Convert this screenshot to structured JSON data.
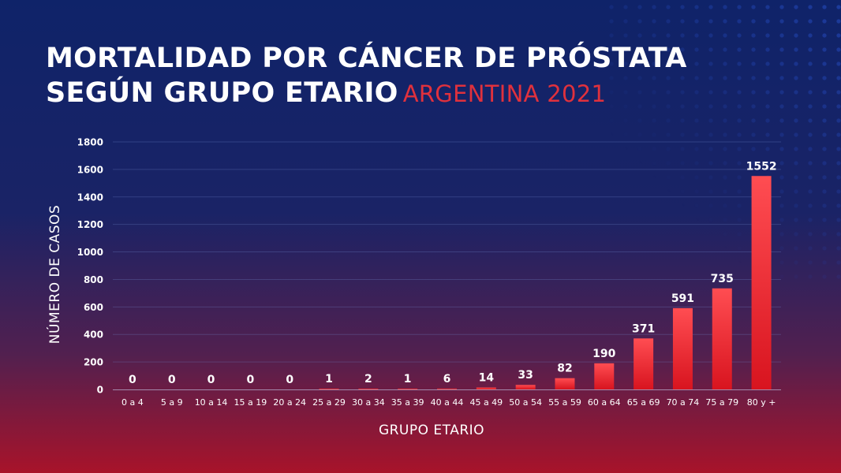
{
  "title_line1": "MORTALIDAD POR CÁNCER DE PRÓSTATA",
  "title_line2": "SEGÚN GRUPO ETARIO",
  "subtitle": "ARGENTINA 2021",
  "colors": {
    "bar": "#e8252f",
    "bar_light": "#ff4a4f",
    "subtitle": "#e0313d",
    "text": "#ffffff"
  },
  "chart_data": {
    "type": "bar",
    "categories": [
      "0 a 4",
      "5 a 9",
      "10 a 14",
      "15 a 19",
      "20 a 24",
      "25 a 29",
      "30 a 34",
      "35 a 39",
      "40 a 44",
      "45 a 49",
      "50 a 54",
      "55 a 59",
      "60 a 64",
      "65 a 69",
      "70 a 74",
      "75 a 79",
      "80 y +"
    ],
    "values": [
      0,
      0,
      0,
      0,
      0,
      1,
      2,
      1,
      6,
      14,
      33,
      82,
      190,
      371,
      591,
      735,
      1552
    ],
    "xlabel": "GRUPO ETARIO",
    "ylabel": "NÚMERO DE CASOS",
    "ylim": [
      0,
      1800
    ],
    "yticks": [
      0,
      200,
      400,
      600,
      800,
      1000,
      1200,
      1400,
      1600,
      1800
    ],
    "grid": true,
    "data_labels": true
  }
}
